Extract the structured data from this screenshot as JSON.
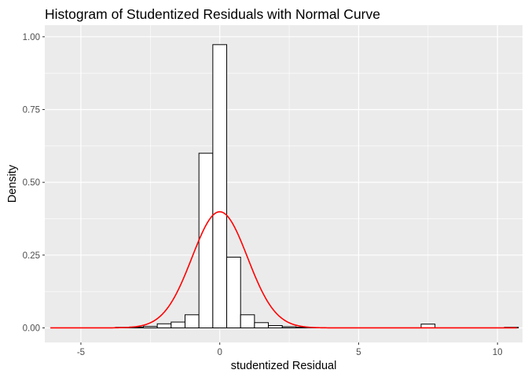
{
  "chart_data": {
    "type": "bar",
    "title": "Histogram of Studentized Residuals with Normal Curve",
    "xlabel": "studentized Residual",
    "ylabel": "Density",
    "xlim": [
      -6.3,
      10.9
    ],
    "ylim": [
      -0.05,
      1.04
    ],
    "x_ticks": [
      {
        "value": -5,
        "label": "-5"
      },
      {
        "value": 0,
        "label": "0"
      },
      {
        "value": 5,
        "label": "5"
      },
      {
        "value": 10,
        "label": "10"
      }
    ],
    "y_ticks": [
      {
        "value": 0,
        "label": "0.00"
      },
      {
        "value": 0.25,
        "label": "0.25"
      },
      {
        "value": 0.5,
        "label": "0.50"
      },
      {
        "value": 0.75,
        "label": "0.75"
      },
      {
        "value": 1,
        "label": "1.00"
      }
    ],
    "grid": true,
    "background": "#ebebeb",
    "grid_color": "#ffffff",
    "bar_fill": "#ffffff",
    "bar_stroke": "#000000",
    "curve_color": "#ff0000",
    "bin_width": 0.5,
    "bins": [
      {
        "start": -3.75,
        "end": -3.25,
        "density": 0.002
      },
      {
        "start": -3.25,
        "end": -2.75,
        "density": 0.003
      },
      {
        "start": -2.75,
        "end": -2.25,
        "density": 0.005
      },
      {
        "start": -2.25,
        "end": -1.75,
        "density": 0.014
      },
      {
        "start": -1.75,
        "end": -1.25,
        "density": 0.02
      },
      {
        "start": -1.25,
        "end": -0.75,
        "density": 0.045
      },
      {
        "start": -0.75,
        "end": -0.25,
        "density": 0.6
      },
      {
        "start": -0.25,
        "end": 0.25,
        "density": 0.973
      },
      {
        "start": 0.25,
        "end": 0.75,
        "density": 0.243
      },
      {
        "start": 0.75,
        "end": 1.25,
        "density": 0.045
      },
      {
        "start": 1.25,
        "end": 1.75,
        "density": 0.018
      },
      {
        "start": 1.75,
        "end": 2.25,
        "density": 0.008
      },
      {
        "start": 2.25,
        "end": 2.75,
        "density": 0.004
      },
      {
        "start": 2.75,
        "end": 3.25,
        "density": 0.002
      },
      {
        "start": 3.25,
        "end": 3.75,
        "density": 0.001
      },
      {
        "start": 7.25,
        "end": 7.75,
        "density": 0.013
      },
      {
        "start": 10.25,
        "end": 10.75,
        "density": 0.002
      }
    ],
    "curve": {
      "distribution": "normal",
      "mean": 0,
      "sd": 1,
      "x_range": [
        -6.1,
        10.7
      ]
    }
  }
}
